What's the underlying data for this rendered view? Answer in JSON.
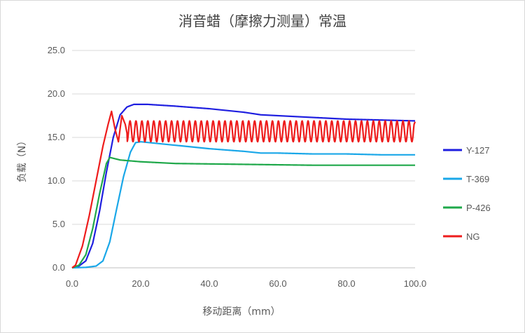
{
  "chart_data": {
    "type": "line",
    "title": "消音蜡（摩擦力测量）常温",
    "xlabel": "移动距离（mm）",
    "ylabel": "负载（N）",
    "xlim": [
      0,
      100
    ],
    "ylim": [
      0,
      25
    ],
    "x_ticks": [
      "0.0",
      "20.0",
      "40.0",
      "60.0",
      "80.0",
      "100.0"
    ],
    "y_ticks": [
      "0.0",
      "5.0",
      "10.0",
      "15.0",
      "20.0",
      "25.0"
    ],
    "grid": "horizontal",
    "legend_position": "right",
    "series": [
      {
        "name": "Y-127",
        "color": "#1f1fe0",
        "points": [
          [
            0,
            0
          ],
          [
            2,
            0.2
          ],
          [
            4,
            0.8
          ],
          [
            6,
            2.8
          ],
          [
            8,
            6.5
          ],
          [
            10,
            11.0
          ],
          [
            12,
            15.0
          ],
          [
            14,
            17.6
          ],
          [
            16,
            18.5
          ],
          [
            18,
            18.8
          ],
          [
            22,
            18.8
          ],
          [
            30,
            18.6
          ],
          [
            40,
            18.3
          ],
          [
            50,
            17.9
          ],
          [
            55,
            17.6
          ],
          [
            60,
            17.5
          ],
          [
            70,
            17.3
          ],
          [
            80,
            17.1
          ],
          [
            90,
            17.0
          ],
          [
            100,
            16.9
          ]
        ]
      },
      {
        "name": "T-369",
        "color": "#1aa7e8",
        "points": [
          [
            0,
            0
          ],
          [
            4,
            0.05
          ],
          [
            7,
            0.2
          ],
          [
            9,
            0.8
          ],
          [
            11,
            3.0
          ],
          [
            13,
            6.8
          ],
          [
            15,
            10.5
          ],
          [
            17,
            13.3
          ],
          [
            18.5,
            14.4
          ],
          [
            20,
            14.5
          ],
          [
            25,
            14.3
          ],
          [
            30,
            14.1
          ],
          [
            40,
            13.7
          ],
          [
            50,
            13.4
          ],
          [
            55,
            13.2
          ],
          [
            60,
            13.2
          ],
          [
            70,
            13.1
          ],
          [
            80,
            13.1
          ],
          [
            90,
            13.0
          ],
          [
            100,
            13.0
          ]
        ]
      },
      {
        "name": "P-426",
        "color": "#1fa84a",
        "points": [
          [
            0,
            0
          ],
          [
            2,
            0.3
          ],
          [
            4,
            1.5
          ],
          [
            6,
            4.5
          ],
          [
            8,
            8.5
          ],
          [
            10,
            12.0
          ],
          [
            11,
            12.7
          ],
          [
            14,
            12.4
          ],
          [
            20,
            12.2
          ],
          [
            30,
            12.0
          ],
          [
            40,
            11.95
          ],
          [
            50,
            11.9
          ],
          [
            60,
            11.85
          ],
          [
            70,
            11.8
          ],
          [
            80,
            11.8
          ],
          [
            90,
            11.8
          ],
          [
            100,
            11.8
          ]
        ]
      },
      {
        "name": "NG",
        "color": "#ee1c1c",
        "oscillating": true,
        "points": [
          [
            0,
            0
          ],
          [
            1,
            0.3
          ],
          [
            3,
            2.5
          ],
          [
            5,
            6.0
          ],
          [
            7,
            10.0
          ],
          [
            9,
            14.0
          ],
          [
            10.5,
            16.5
          ],
          [
            11.5,
            18.0
          ],
          [
            12.5,
            16.0
          ],
          [
            13.5,
            14.5
          ],
          [
            14.5,
            17.5
          ],
          [
            15.5,
            16.5
          ],
          [
            16,
            15.5
          ],
          [
            100,
            16.8
          ]
        ],
        "oscillation": {
          "x_start": 13,
          "x_end": 100,
          "center": 15.7,
          "amplitude": 1.2,
          "period": 1.73
        }
      }
    ]
  }
}
